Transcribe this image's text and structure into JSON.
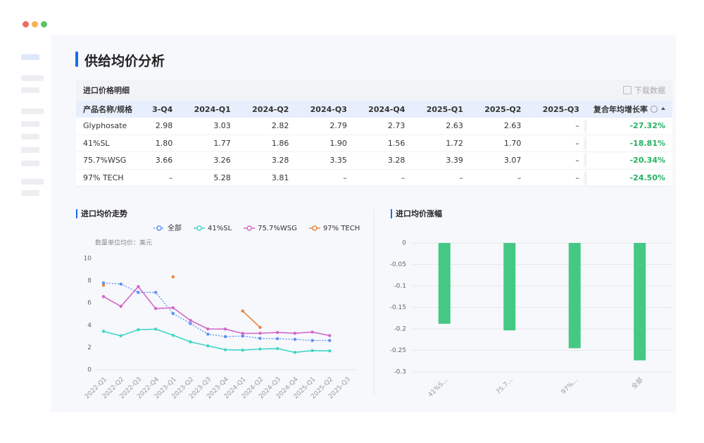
{
  "page": {
    "title": "供给均价分析"
  },
  "table": {
    "title": "进口价格明细",
    "download": "下载数据",
    "columns": [
      "产品名称/规格",
      "3-Q4",
      "2024-Q1",
      "2024-Q2",
      "2024-Q3",
      "2024-Q4",
      "2025-Q1",
      "2025-Q2",
      "2025-Q3",
      "复合年均增长率"
    ],
    "rows": [
      [
        "Glyphosate",
        "2.98",
        "3.03",
        "2.82",
        "2.79",
        "2.73",
        "2.63",
        "2.63",
        "–",
        "-27.32%"
      ],
      [
        "41%SL",
        "1.80",
        "1.77",
        "1.86",
        "1.90",
        "1.56",
        "1.72",
        "1.70",
        "–",
        "-18.81%"
      ],
      [
        "75.7%WSG",
        "3.66",
        "3.26",
        "3.28",
        "3.35",
        "3.28",
        "3.39",
        "3.07",
        "–",
        "-20.34%"
      ],
      [
        "97% TECH",
        "–",
        "5.28",
        "3.81",
        "–",
        "–",
        "–",
        "–",
        "–",
        "-24.50%"
      ]
    ]
  },
  "chart_data": [
    {
      "type": "line",
      "title": "进口均价走势",
      "subtitle": "数量单位均价：美元",
      "grid": false,
      "categories": [
        "2022-Q1",
        "2022-Q2",
        "2022-Q3",
        "2022-Q4",
        "2023-Q1",
        "2023-Q2",
        "2023-Q3",
        "2023-Q4",
        "2024-Q1",
        "2024-Q2",
        "2024-Q3",
        "2024-Q4",
        "2025-Q1",
        "2025-Q2",
        "2025-Q3"
      ],
      "ylim": [
        0,
        10
      ],
      "yticks": [
        0,
        2,
        4,
        6,
        8,
        10
      ],
      "series": [
        {
          "name": "全部",
          "color": "#5b8ff9",
          "style": "dotted",
          "values": [
            7.8,
            7.7,
            6.95,
            6.95,
            5.05,
            4.15,
            3.2,
            2.98,
            3.03,
            2.82,
            2.79,
            2.73,
            2.63,
            2.63,
            null
          ]
        },
        {
          "name": "41%SL",
          "color": "#3fd7c5",
          "style": "solid",
          "values": [
            3.45,
            3.05,
            3.6,
            3.65,
            3.1,
            2.5,
            2.15,
            1.8,
            1.77,
            1.86,
            1.9,
            1.56,
            1.72,
            1.7,
            null
          ]
        },
        {
          "name": "75.7%WSG",
          "color": "#d468c6",
          "style": "solid",
          "values": [
            6.58,
            5.7,
            7.47,
            5.5,
            5.57,
            4.43,
            3.67,
            3.66,
            3.26,
            3.28,
            3.35,
            3.28,
            3.39,
            3.07,
            null
          ]
        },
        {
          "name": "97% TECH",
          "color": "#e8843c",
          "style": "solid",
          "values": [
            7.6,
            null,
            null,
            null,
            8.35,
            null,
            null,
            null,
            5.28,
            3.81,
            null,
            null,
            null,
            null,
            null
          ]
        }
      ]
    },
    {
      "type": "bar",
      "title": "进口均价涨幅",
      "grid": true,
      "color": "#45c883",
      "categories": [
        "41%S...",
        "75.7...",
        "97%...",
        "全部"
      ],
      "values": [
        -0.1881,
        -0.2034,
        -0.245,
        -0.2732
      ],
      "ylim": [
        -0.3,
        0
      ],
      "yticks": [
        0,
        -0.05,
        -0.1,
        -0.15,
        -0.2,
        -0.25,
        -0.3
      ]
    }
  ]
}
